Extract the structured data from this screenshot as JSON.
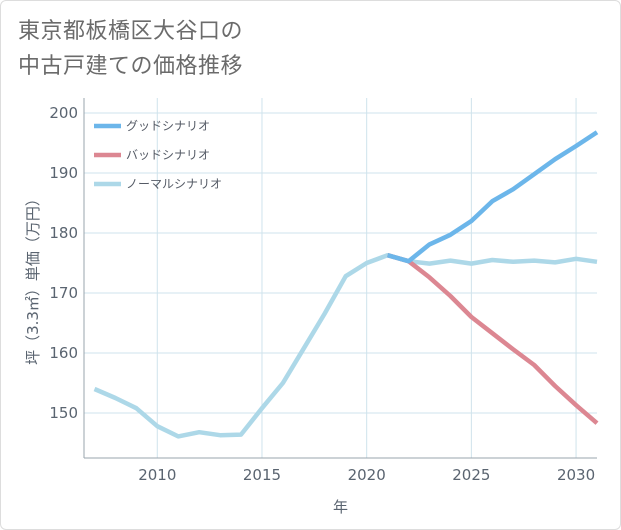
{
  "chart_data": {
    "type": "line",
    "title_lines": [
      "東京都板橋区大谷口の",
      "中古戸建ての価格推移"
    ],
    "xlabel": "年",
    "ylabel": "坪（3.3㎡）単価（万円）",
    "xlim": [
      2006.5,
      2031
    ],
    "ylim": [
      142.5,
      202.5
    ],
    "xticks": [
      2010,
      2015,
      2020,
      2025,
      2030
    ],
    "yticks": [
      150,
      160,
      170,
      180,
      190,
      200
    ],
    "grid": true,
    "legend_position": "top-left",
    "series": [
      {
        "name": "グッドシナリオ",
        "color": "#6cb6ea",
        "x": [
          2021,
          2022,
          2023,
          2024,
          2025,
          2026,
          2027,
          2028,
          2029,
          2030,
          2031
        ],
        "y": [
          176.3,
          175.3,
          178.1,
          179.7,
          182,
          185.3,
          187.3,
          189.8,
          192.3,
          194.5,
          196.8
        ]
      },
      {
        "name": "バッドシナリオ",
        "color": "#dc8792",
        "x": [
          2021,
          2022,
          2023,
          2024,
          2025,
          2026,
          2027,
          2028,
          2029,
          2030,
          2031
        ],
        "y": [
          176.3,
          175.3,
          172.6,
          169.5,
          166,
          163.3,
          160.6,
          158,
          154.5,
          151.3,
          148.3
        ]
      },
      {
        "name": "ノーマルシナリオ",
        "color": "#add8e8",
        "x": [
          2007,
          2008,
          2009,
          2010,
          2011,
          2012,
          2013,
          2014,
          2015,
          2016,
          2017,
          2018,
          2019,
          2020,
          2021,
          2022,
          2023,
          2024,
          2025,
          2026,
          2027,
          2028,
          2029,
          2030,
          2031
        ],
        "y": [
          154,
          152.5,
          150.8,
          147.8,
          146.1,
          146.8,
          146.3,
          146.4,
          150.8,
          155,
          160.8,
          166.6,
          172.8,
          175,
          176.3,
          175.3,
          174.9,
          175.4,
          174.9,
          175.5,
          175.2,
          175.4,
          175.1,
          175.7,
          175.2
        ]
      }
    ]
  }
}
